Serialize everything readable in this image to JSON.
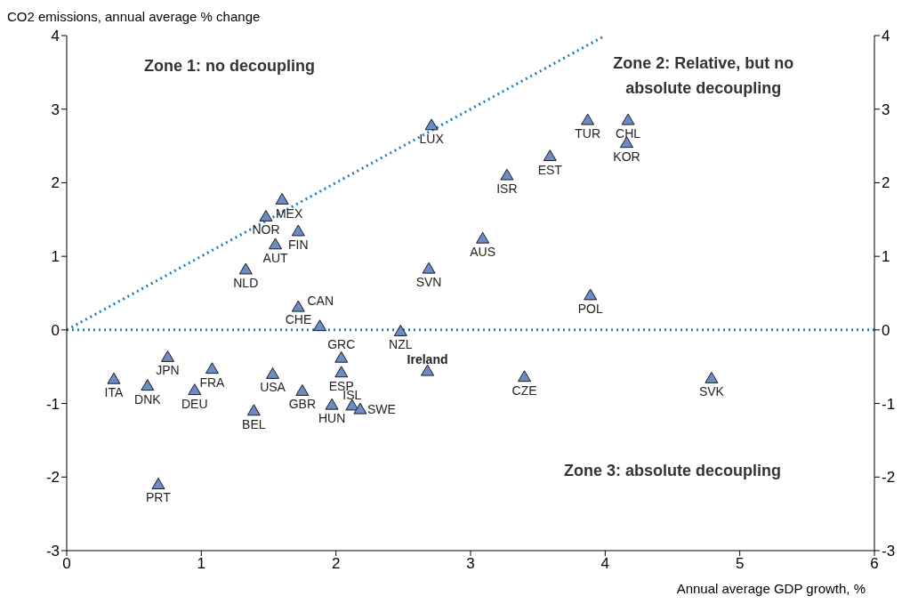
{
  "chart_data": {
    "type": "scatter",
    "xlabel": "Annual average GDP growth, %",
    "ylabel": "CO2 emissions, annual average % change",
    "xlim": [
      0,
      6
    ],
    "xticks": [
      0,
      1,
      2,
      3,
      4,
      5,
      6
    ],
    "ylim": [
      -3,
      4
    ],
    "yticks": [
      -3,
      -2,
      -1,
      0,
      1,
      2,
      3,
      4
    ],
    "y2lim": [
      -3,
      4
    ],
    "y2ticks": [
      -3,
      -2,
      -1,
      0,
      1,
      2,
      3,
      4
    ],
    "grid": false,
    "legend": false,
    "marker": "triangle",
    "series": [
      {
        "color": "#6b8cc7",
        "x": [
          2.71,
          3.87,
          4.17,
          4.16,
          3.59,
          3.27,
          3.09,
          2.69,
          3.89,
          1.6,
          1.48,
          1.72,
          1.55,
          1.33,
          1.72,
          1.88,
          2.48,
          2.04,
          2.04,
          2.68,
          3.4,
          4.79,
          0.35,
          0.75,
          1.08,
          0.6,
          0.95,
          1.53,
          1.75,
          1.97,
          2.12,
          2.18,
          1.39,
          0.68
        ],
        "values": [
          2.78,
          2.85,
          2.85,
          2.54,
          2.36,
          2.1,
          1.24,
          0.83,
          0.47,
          1.77,
          1.54,
          1.34,
          1.16,
          0.82,
          0.31,
          0.05,
          -0.02,
          -0.38,
          -0.58,
          -0.56,
          -0.64,
          -0.66,
          -0.67,
          -0.37,
          -0.53,
          -0.76,
          -0.82,
          -0.6,
          -0.83,
          -1.02,
          -1.03,
          -1.08,
          -1.1,
          -2.1
        ]
      },
      {
        "type": "line",
        "color": "#1a7fc1",
        "line_style": "dotted",
        "marker": "none",
        "x": [
          0,
          4
        ],
        "values": [
          0,
          4
        ]
      }
    ],
    "ref_lines": [
      {
        "axis": "y",
        "value": 0,
        "color": "#1a7fc1",
        "line_style": "dotted"
      }
    ],
    "annotations": [
      {
        "text": "LUX",
        "x": 2.71,
        "y": 2.78
      },
      {
        "text": "TUR",
        "x": 3.87,
        "y": 2.85
      },
      {
        "text": "CHL",
        "x": 4.17,
        "y": 2.85
      },
      {
        "text": "KOR",
        "x": 4.16,
        "y": 2.54
      },
      {
        "text": "EST",
        "x": 3.59,
        "y": 2.36
      },
      {
        "text": "ISR",
        "x": 3.27,
        "y": 2.1
      },
      {
        "text": "AUS",
        "x": 3.09,
        "y": 1.24
      },
      {
        "text": "SVN",
        "x": 2.69,
        "y": 0.83
      },
      {
        "text": "POL",
        "x": 3.89,
        "y": 0.47
      },
      {
        "text": "MEX",
        "x": 1.6,
        "y": 1.77
      },
      {
        "text": "NOR",
        "x": 1.48,
        "y": 1.54
      },
      {
        "text": "FIN",
        "x": 1.72,
        "y": 1.34
      },
      {
        "text": "AUT",
        "x": 1.55,
        "y": 1.16
      },
      {
        "text": "NLD",
        "x": 1.33,
        "y": 0.82
      },
      {
        "text": "CAN",
        "x": 1.72,
        "y": 0.31
      },
      {
        "text": "CHE",
        "x": 1.88,
        "y": 0.05
      },
      {
        "text": "NZL",
        "x": 2.48,
        "y": -0.02
      },
      {
        "text": "GRC",
        "x": 2.04,
        "y": -0.38
      },
      {
        "text": "ESP",
        "x": 2.04,
        "y": -0.58
      },
      {
        "text": "Ireland",
        "x": 2.68,
        "y": -0.56
      },
      {
        "text": "CZE",
        "x": 3.4,
        "y": -0.64
      },
      {
        "text": "SVK",
        "x": 4.79,
        "y": -0.66
      },
      {
        "text": "ITA",
        "x": 0.35,
        "y": -0.67
      },
      {
        "text": "JPN",
        "x": 0.75,
        "y": -0.37
      },
      {
        "text": "FRA",
        "x": 1.08,
        "y": -0.53
      },
      {
        "text": "DNK",
        "x": 0.6,
        "y": -0.76
      },
      {
        "text": "DEU",
        "x": 0.95,
        "y": -0.82
      },
      {
        "text": "USA",
        "x": 1.53,
        "y": -0.6
      },
      {
        "text": "GBR",
        "x": 1.75,
        "y": -0.83
      },
      {
        "text": "HUN",
        "x": 1.97,
        "y": -1.02
      },
      {
        "text": "ISL",
        "x": 2.12,
        "y": -1.03
      },
      {
        "text": "SWE",
        "x": 2.18,
        "y": -1.08
      },
      {
        "text": "BEL",
        "x": 1.39,
        "y": -1.1
      },
      {
        "text": "PRT",
        "x": 0.68,
        "y": -2.1
      },
      "Zone 1: no decoupling",
      "Zone 2: Relative, but no absolute decoupling",
      "Zone 3: absolute decoupling"
    ]
  }
}
